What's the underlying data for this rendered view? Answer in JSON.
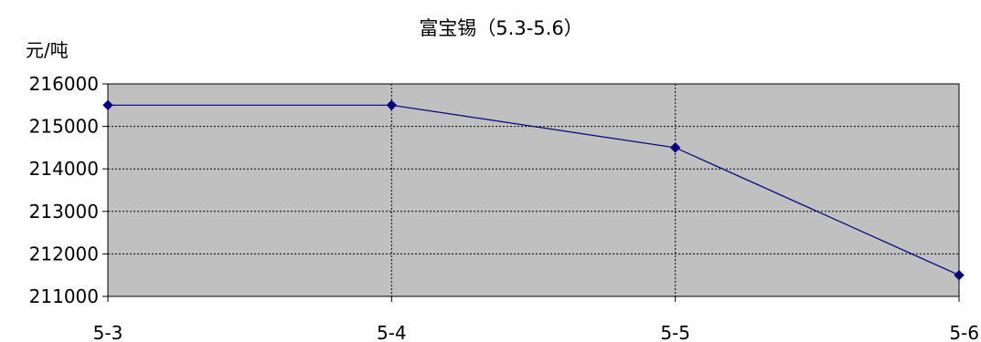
{
  "chart_data": {
    "type": "line",
    "title": "富宝锡（5.3-5.6）",
    "ylabel": "元/吨",
    "xlabel": "",
    "categories": [
      "5-3",
      "5-4",
      "5-5",
      "5-6"
    ],
    "series": [
      {
        "values": [
          215500,
          215500,
          214500,
          211500
        ],
        "color": "#000080",
        "marker": "diamond"
      }
    ],
    "ylim": [
      211000,
      216000
    ],
    "yticks": [
      211000,
      212000,
      213000,
      214000,
      215000,
      216000
    ],
    "grid": true,
    "plot_background": "#c0c0c0"
  }
}
